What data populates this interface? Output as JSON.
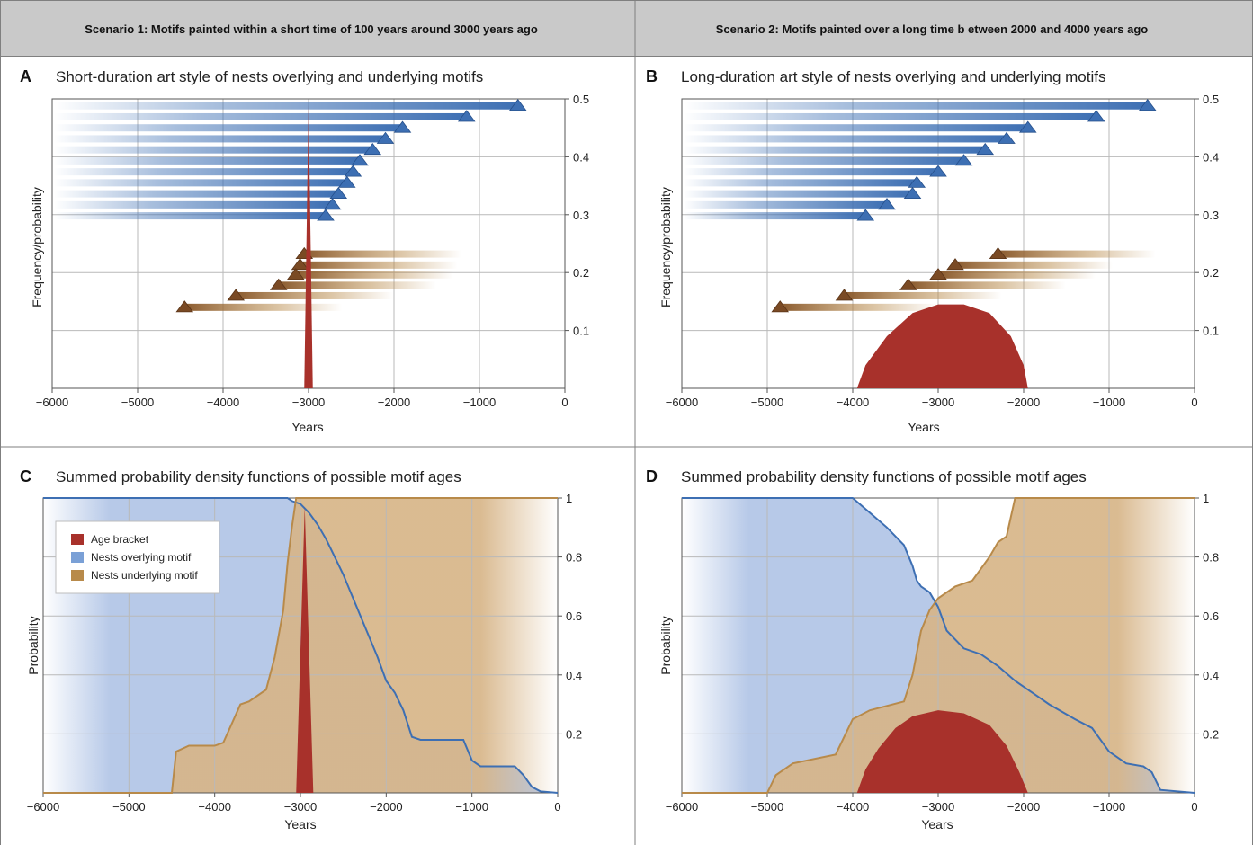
{
  "headers": {
    "left": "Scenario 1: Motifs painted within a short time of 100 years around 3000 years ago",
    "right": "Scenario 2: Motifs painted over a long time b etween 2000 and 4000 years ago"
  },
  "colors": {
    "header_bg": "#c9c9c9",
    "overlying": "#3d6fb3",
    "overlying_fill": "#b7c9e8",
    "underlying": "#b88a4a",
    "underlying_fill": "#d7b588",
    "age_bracket": "#a8312b",
    "underlying_arrow": "#7a4a24",
    "grid": "#b9b9b9"
  },
  "panels": [
    {
      "letter": "A",
      "title": "Short-duration art style of nests overlying and underlying motifs",
      "xlabel": "Years",
      "ylabel": "Frequency/probability"
    },
    {
      "letter": "B",
      "title": "Long-duration art style of nests overlying and underlying motifs",
      "xlabel": "Years",
      "ylabel": "Frequency/probability"
    },
    {
      "letter": "C",
      "title": "Summed probability density functions of possible motif ages",
      "xlabel": "Years",
      "ylabel": "Probability"
    },
    {
      "letter": "D",
      "title": "Summed probability density functions of possible motif ages",
      "xlabel": "Years",
      "ylabel": "Probability"
    }
  ],
  "legend": [
    "Age bracket",
    "Nests overlying motif",
    "Nests underlying motif"
  ],
  "chart_data": [
    {
      "panel": "A",
      "type": "bar",
      "xlim": [
        -6000,
        0
      ],
      "ylim": [
        0,
        0.5
      ],
      "xticks": [
        "−6000",
        "−5000",
        "−4000",
        "−3000",
        "−2000",
        "−1000",
        "0"
      ],
      "xtick_values": [
        -6000,
        -5000,
        -4000,
        -3000,
        -2000,
        -1000,
        0
      ],
      "yticks": [
        "0.1",
        "0.2",
        "0.3",
        "0.4",
        "0.5"
      ],
      "ytick_values": [
        0.1,
        0.2,
        0.3,
        0.4,
        0.5
      ],
      "overlying_nests": [
        {
          "age": -550,
          "y": 0.488
        },
        {
          "age": -1150,
          "y": 0.469
        },
        {
          "age": -1900,
          "y": 0.45
        },
        {
          "age": -2100,
          "y": 0.431
        },
        {
          "age": -2250,
          "y": 0.412
        },
        {
          "age": -2400,
          "y": 0.393
        },
        {
          "age": -2480,
          "y": 0.374
        },
        {
          "age": -2550,
          "y": 0.355
        },
        {
          "age": -2650,
          "y": 0.336
        },
        {
          "age": -2720,
          "y": 0.317
        },
        {
          "age": -2800,
          "y": 0.298
        }
      ],
      "underlying_nests": [
        {
          "age": -3050,
          "y": 0.232
        },
        {
          "age": -3100,
          "y": 0.213
        },
        {
          "age": -3150,
          "y": 0.196
        },
        {
          "age": -3350,
          "y": 0.178
        },
        {
          "age": -3850,
          "y": 0.16
        },
        {
          "age": -4450,
          "y": 0.14
        }
      ],
      "age_bracket": {
        "x": [
          -3050,
          -3000,
          -2950
        ],
        "y": [
          0,
          0.49,
          0
        ]
      }
    },
    {
      "panel": "B",
      "type": "bar",
      "xlim": [
        -6000,
        0
      ],
      "ylim": [
        0,
        0.5
      ],
      "xticks": [
        "−6000",
        "−5000",
        "−4000",
        "−3000",
        "−2000",
        "−1000",
        "0"
      ],
      "xtick_values": [
        -6000,
        -5000,
        -4000,
        -3000,
        -2000,
        -1000,
        0
      ],
      "yticks": [
        "0.1",
        "0.2",
        "0.3",
        "0.4",
        "0.5"
      ],
      "ytick_values": [
        0.1,
        0.2,
        0.3,
        0.4,
        0.5
      ],
      "overlying_nests": [
        {
          "age": -550,
          "y": 0.488
        },
        {
          "age": -1150,
          "y": 0.469
        },
        {
          "age": -1950,
          "y": 0.45
        },
        {
          "age": -2200,
          "y": 0.431
        },
        {
          "age": -2450,
          "y": 0.412
        },
        {
          "age": -2700,
          "y": 0.393
        },
        {
          "age": -3000,
          "y": 0.374
        },
        {
          "age": -3250,
          "y": 0.355
        },
        {
          "age": -3300,
          "y": 0.336
        },
        {
          "age": -3600,
          "y": 0.317
        },
        {
          "age": -3850,
          "y": 0.298
        }
      ],
      "underlying_nests": [
        {
          "age": -2300,
          "y": 0.232
        },
        {
          "age": -2800,
          "y": 0.213
        },
        {
          "age": -3000,
          "y": 0.196
        },
        {
          "age": -3350,
          "y": 0.178
        },
        {
          "age": -4100,
          "y": 0.16
        },
        {
          "age": -4850,
          "y": 0.14
        }
      ],
      "age_bracket": {
        "x": [
          -3950,
          -3850,
          -3600,
          -3300,
          -3000,
          -2700,
          -2400,
          -2150,
          -2000,
          -1950
        ],
        "y": [
          0,
          0.04,
          0.09,
          0.13,
          0.145,
          0.145,
          0.13,
          0.09,
          0.04,
          0
        ]
      }
    },
    {
      "panel": "C",
      "type": "area",
      "xlim": [
        -6000,
        0
      ],
      "ylim": [
        0,
        1
      ],
      "xticks": [
        "−6000",
        "−5000",
        "−4000",
        "−3000",
        "−2000",
        "−1000",
        "0"
      ],
      "xtick_values": [
        -6000,
        -5000,
        -4000,
        -3000,
        -2000,
        -1000,
        0
      ],
      "yticks": [
        "0.2",
        "0.4",
        "0.6",
        "0.8",
        "1"
      ],
      "ytick_values": [
        0.2,
        0.4,
        0.6,
        0.8,
        1
      ],
      "series": [
        {
          "name": "Nests overlying motif",
          "x": [
            -6000,
            -3150,
            -3100,
            -3000,
            -2900,
            -2800,
            -2700,
            -2600,
            -2500,
            -2400,
            -2300,
            -2200,
            -2100,
            -2000,
            -1900,
            -1800,
            -1700,
            -1600,
            -1100,
            -1000,
            -900,
            -500,
            -400,
            -300,
            -200,
            0
          ],
          "y": [
            1,
            1,
            0.99,
            0.98,
            0.95,
            0.91,
            0.86,
            0.8,
            0.74,
            0.67,
            0.6,
            0.53,
            0.46,
            0.38,
            0.34,
            0.28,
            0.19,
            0.18,
            0.18,
            0.11,
            0.09,
            0.09,
            0.06,
            0.02,
            0.005,
            0
          ]
        },
        {
          "name": "Nests underlying motif",
          "x": [
            -6000,
            -4500,
            -4450,
            -4300,
            -4000,
            -3900,
            -3700,
            -3600,
            -3400,
            -3300,
            -3200,
            -3150,
            -3100,
            -3050,
            0
          ],
          "y": [
            0,
            0,
            0.14,
            0.16,
            0.16,
            0.17,
            0.3,
            0.31,
            0.35,
            0.46,
            0.62,
            0.78,
            0.9,
            1,
            1
          ]
        }
      ],
      "age_bracket": {
        "x": [
          -3050,
          -2950,
          -2850
        ],
        "y": [
          0,
          0.97,
          0
        ]
      }
    },
    {
      "panel": "D",
      "type": "area",
      "xlim": [
        -6000,
        0
      ],
      "ylim": [
        0,
        1
      ],
      "xticks": [
        "−6000",
        "−5000",
        "−4000",
        "−3000",
        "−2000",
        "−1000",
        "0"
      ],
      "xtick_values": [
        -6000,
        -5000,
        -4000,
        -3000,
        -2000,
        -1000,
        0
      ],
      "yticks": [
        "0.2",
        "0.4",
        "0.6",
        "0.8",
        "1"
      ],
      "ytick_values": [
        0.2,
        0.4,
        0.6,
        0.8,
        1
      ],
      "series": [
        {
          "name": "Nests overlying motif",
          "x": [
            -6000,
            -4000,
            -3800,
            -3600,
            -3400,
            -3300,
            -3250,
            -3200,
            -3100,
            -3000,
            -2900,
            -2700,
            -2500,
            -2300,
            -2100,
            -1900,
            -1700,
            -1400,
            -1200,
            -1000,
            -800,
            -600,
            -500,
            -400,
            0
          ],
          "y": [
            1,
            1,
            0.95,
            0.9,
            0.84,
            0.77,
            0.72,
            0.7,
            0.68,
            0.63,
            0.55,
            0.49,
            0.47,
            0.43,
            0.38,
            0.34,
            0.3,
            0.25,
            0.22,
            0.14,
            0.1,
            0.09,
            0.07,
            0.01,
            0
          ]
        },
        {
          "name": "Nests underlying motif",
          "x": [
            -6000,
            -5000,
            -4900,
            -4700,
            -4200,
            -4000,
            -3800,
            -3400,
            -3300,
            -3200,
            -3100,
            -3000,
            -2800,
            -2600,
            -2400,
            -2300,
            -2200,
            -2100,
            0
          ],
          "y": [
            0,
            0,
            0.06,
            0.1,
            0.13,
            0.25,
            0.28,
            0.31,
            0.4,
            0.55,
            0.62,
            0.66,
            0.7,
            0.72,
            0.8,
            0.85,
            0.87,
            1,
            1
          ]
        }
      ],
      "age_bracket": {
        "x": [
          -3950,
          -3850,
          -3700,
          -3500,
          -3300,
          -3000,
          -2700,
          -2400,
          -2200,
          -2050,
          -1950
        ],
        "y": [
          0,
          0.08,
          0.15,
          0.22,
          0.26,
          0.28,
          0.27,
          0.23,
          0.16,
          0.07,
          0
        ]
      }
    }
  ]
}
